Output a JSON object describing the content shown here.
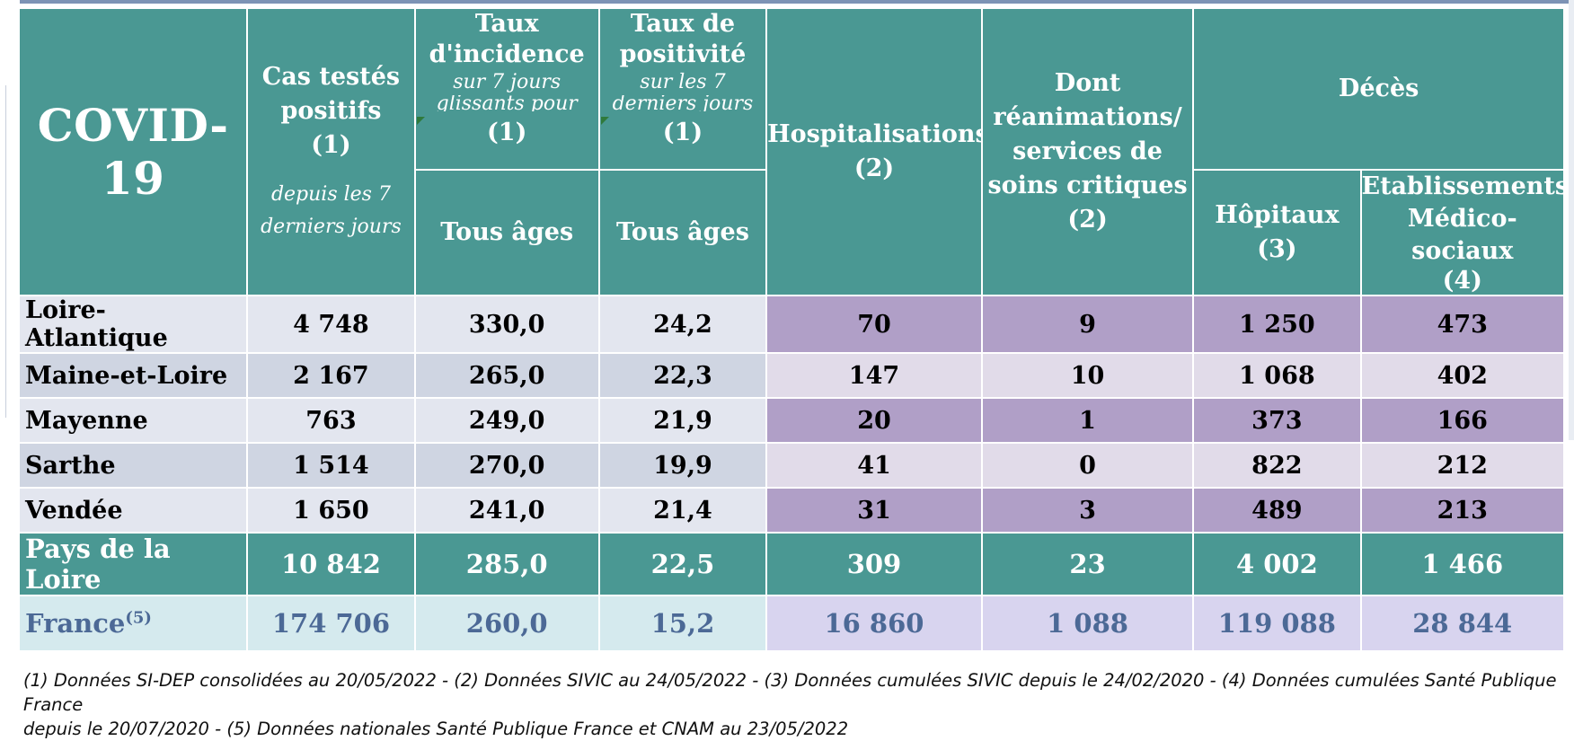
{
  "title": "COVID-19",
  "headers": {
    "cas_line1": "Cas testés",
    "cas_line2": "positifs",
    "cas_ref": "(1)",
    "cas_sub1": "depuis les 7",
    "cas_sub2": "derniers jours",
    "inc_line1": "Taux",
    "inc_line2": "d'incidence",
    "inc_sub1": "sur 7 jours",
    "inc_sub2": "glissants pour",
    "inc_ref": "(1)",
    "inc_age": "Tous âges",
    "pos_line1": "Taux de",
    "pos_line2": "positivité",
    "pos_sub1": "sur les 7",
    "pos_sub2": "derniers jours",
    "pos_ref": "(1)",
    "pos_age": "Tous âges",
    "hosp_line1": "Hospitalisations",
    "hosp_ref": "(2)",
    "rea_line1": "Dont",
    "rea_line2": "réanimations/",
    "rea_line3": "services de",
    "rea_line4": "soins critiques",
    "rea_ref": "(2)",
    "deces": "Décès",
    "hop": "Hôpitaux (3)",
    "ems_line1": "Etablissements",
    "ems_line2": "Médico-sociaux",
    "ems_ref": "(4)"
  },
  "rows": [
    {
      "name": "Loire-Atlantique",
      "cas": "4 748",
      "incidence": "330,0",
      "positivite": "24,2",
      "hosp": "70",
      "rea": "9",
      "hopitaux": "1 250",
      "ems": "473"
    },
    {
      "name": "Maine-et-Loire",
      "cas": "2 167",
      "incidence": "265,0",
      "positivite": "22,3",
      "hosp": "147",
      "rea": "10",
      "hopitaux": "1 068",
      "ems": "402"
    },
    {
      "name": "Mayenne",
      "cas": "763",
      "incidence": "249,0",
      "positivite": "21,9",
      "hosp": "20",
      "rea": "1",
      "hopitaux": "373",
      "ems": "166"
    },
    {
      "name": "Sarthe",
      "cas": "1 514",
      "incidence": "270,0",
      "positivite": "19,9",
      "hosp": "41",
      "rea": "0",
      "hopitaux": "822",
      "ems": "212"
    },
    {
      "name": "Vendée",
      "cas": "1 650",
      "incidence": "241,0",
      "positivite": "21,4",
      "hosp": "31",
      "rea": "3",
      "hopitaux": "489",
      "ems": "213"
    }
  ],
  "total": {
    "name": "Pays de la Loire",
    "cas": "10 842",
    "incidence": "285,0",
    "positivite": "22,5",
    "hosp": "309",
    "rea": "23",
    "hopitaux": "4 002",
    "ems": "1 466"
  },
  "france": {
    "name": "France",
    "sup": "(5)",
    "cas": "174 706",
    "incidence": "260,0",
    "positivite": "15,2",
    "hosp": "16 860",
    "rea": "1 088",
    "hopitaux": "119 088",
    "ems": "28 844"
  },
  "footnote": {
    "line1": "(1) Données SI-DEP consolidées au 20/05/2022 -  (2) Données SIVIC au 24/05/2022 - (3) Données cumulées SIVIC depuis le 24/02/2020 - (4) Données cumulées Santé Publique France",
    "line2": "depuis le 20/07/2020 - (5) Données nationales Santé Publique France et CNAM au 23/05/2022"
  },
  "colors": {
    "header_teal": "#4a9893",
    "row_light": "#e3e6ef",
    "row_blue": "#cfd5e2",
    "purple_dark": "#b09fc7",
    "purple_light": "#e1dbe9",
    "france_text": "#4c6996"
  }
}
